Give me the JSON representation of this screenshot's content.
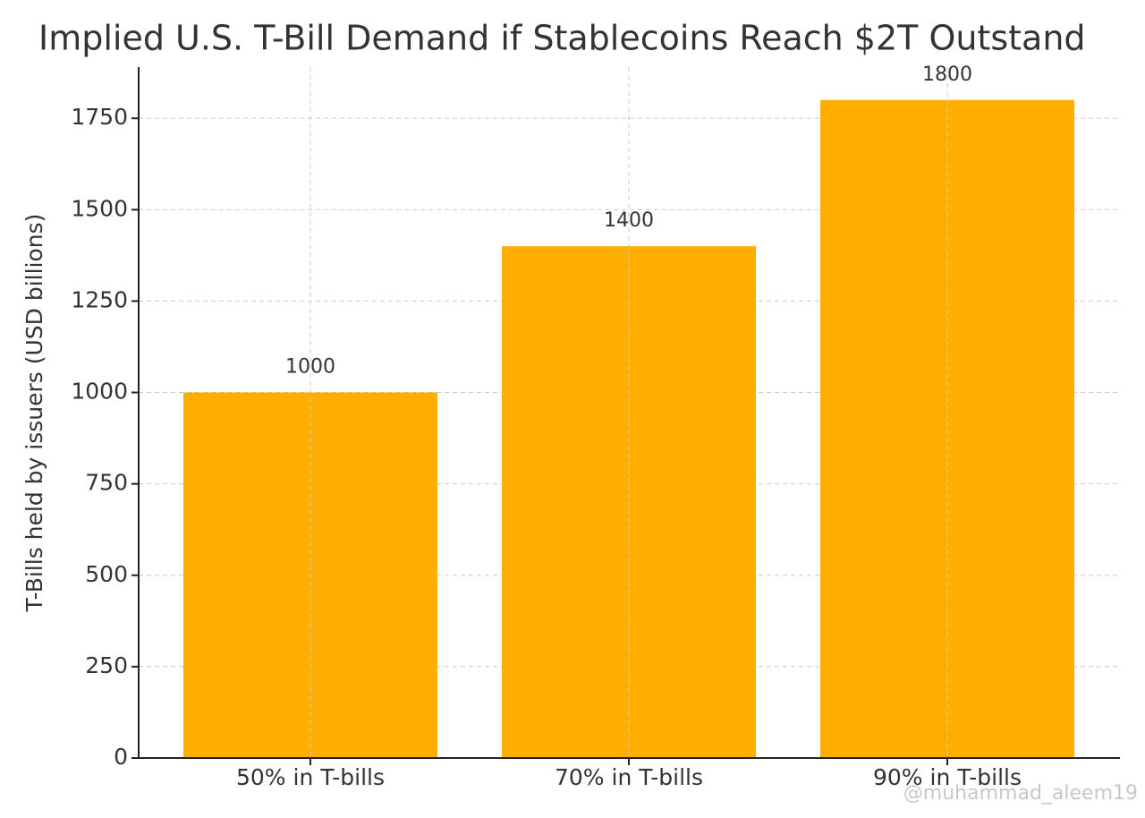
{
  "chart_data": {
    "type": "bar",
    "title": "Implied U.S. T-Bill Demand if Stablecoins Reach $2T Outstand",
    "y_label": "T-Bills held by issuers (USD billions)",
    "categories": [
      "50% in T-bills",
      "70% in T-bills",
      "90% in T-bills"
    ],
    "values": [
      1000,
      1400,
      1800
    ],
    "color": "#ffae00",
    "ylim": [
      0,
      1890
    ],
    "yticks": [
      0,
      250,
      500,
      750,
      1000,
      1250,
      1500,
      1750
    ],
    "grid": true,
    "watermark": "@muhammad_aleem19"
  }
}
